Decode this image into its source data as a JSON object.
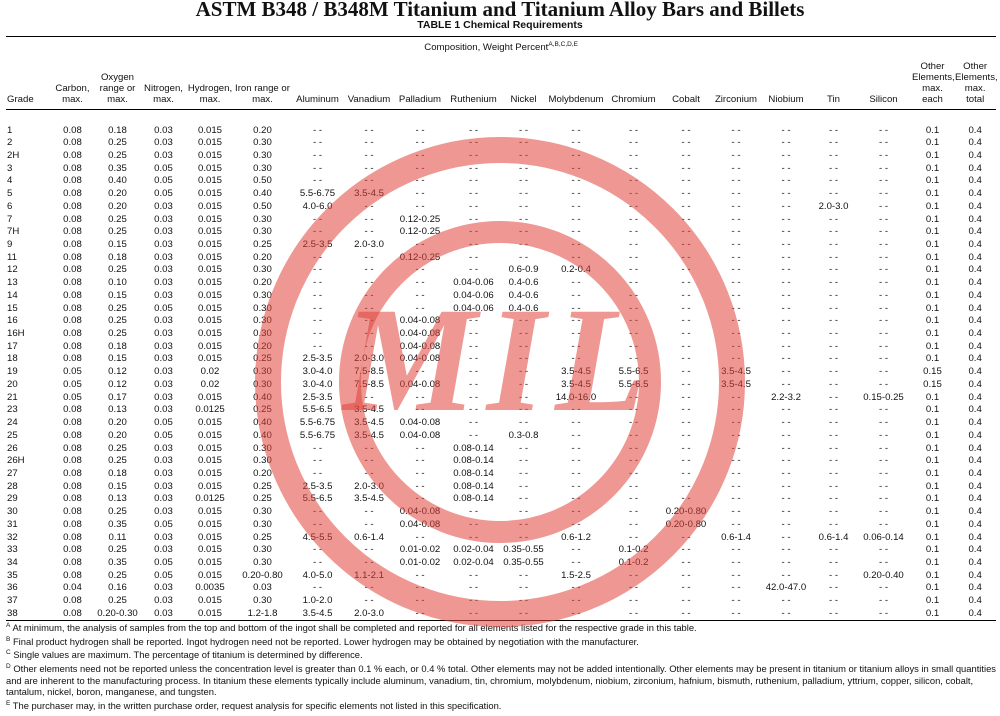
{
  "header": {
    "title": "ASTM B348 / B348M Titanium and Titanium Alloy Bars and Billets",
    "subtitle": "TABLE 1 Chemical Requirements"
  },
  "table": {
    "group_header": "Composition, Weight Percent",
    "group_header_sup": "A,B,C,D,E",
    "columns": [
      "Grade",
      "Carbon, max.",
      "Oxygen range or max.",
      "Nitrogen, max.",
      "Hydrogen, max.",
      "Iron range or max.",
      "Aluminum",
      "Vanadium",
      "Palladium",
      "Ruthenium",
      "Nickel",
      "Molybdenum",
      "Chromium",
      "Cobalt",
      "Zirconium",
      "Niobium",
      "Tin",
      "Silicon",
      "Other Elements, max. each",
      "Other Elements, max. total"
    ],
    "rows": [
      [
        "1",
        "0.08",
        "0.18",
        "0.03",
        "0.015",
        "0.20",
        "- -",
        "- -",
        "- -",
        "- -",
        "- -",
        "- -",
        "- -",
        "- -",
        "- -",
        "- -",
        "- -",
        "- -",
        "0.1",
        "0.4"
      ],
      [
        "2",
        "0.08",
        "0.25",
        "0.03",
        "0.015",
        "0.30",
        "- -",
        "- -",
        "- -",
        "- -",
        "- -",
        "- -",
        "- -",
        "- -",
        "- -",
        "- -",
        "- -",
        "- -",
        "0.1",
        "0.4"
      ],
      [
        "2H",
        "0.08",
        "0.25",
        "0.03",
        "0.015",
        "0.30",
        "- -",
        "- -",
        "- -",
        "- -",
        "- -",
        "- -",
        "- -",
        "- -",
        "- -",
        "- -",
        "- -",
        "- -",
        "0.1",
        "0.4"
      ],
      [
        "3",
        "0.08",
        "0.35",
        "0.05",
        "0.015",
        "0.30",
        "- -",
        "- -",
        "- -",
        "- -",
        "- -",
        "- -",
        "- -",
        "- -",
        "- -",
        "- -",
        "- -",
        "- -",
        "0.1",
        "0.4"
      ],
      [
        "4",
        "0.08",
        "0.40",
        "0.05",
        "0.015",
        "0.50",
        "- -",
        "- -",
        "- -",
        "- -",
        "- -",
        "- -",
        "- -",
        "- -",
        "- -",
        "- -",
        "- -",
        "- -",
        "0.1",
        "0.4"
      ],
      [
        "5",
        "0.08",
        "0.20",
        "0.05",
        "0.015",
        "0.40",
        "5.5-6.75",
        "3.5-4.5",
        "- -",
        "- -",
        "- -",
        "- -",
        "- -",
        "- -",
        "- -",
        "- -",
        "- -",
        "- -",
        "0.1",
        "0.4"
      ],
      [
        "6",
        "0.08",
        "0.20",
        "0.03",
        "0.015",
        "0.50",
        "4.0-6.0",
        "- -",
        "- -",
        "- -",
        "- -",
        "- -",
        "- -",
        "- -",
        "- -",
        "- -",
        "2.0-3.0",
        "- -",
        "0.1",
        "0.4"
      ],
      [
        "7",
        "0.08",
        "0.25",
        "0.03",
        "0.015",
        "0.30",
        "- -",
        "- -",
        "0.12-0.25",
        "- -",
        "- -",
        "- -",
        "- -",
        "- -",
        "- -",
        "- -",
        "- -",
        "- -",
        "0.1",
        "0.4"
      ],
      [
        "7H",
        "0.08",
        "0.25",
        "0.03",
        "0.015",
        "0.30",
        "- -",
        "- -",
        "0.12-0.25",
        "- -",
        "- -",
        "- -",
        "- -",
        "- -",
        "- -",
        "- -",
        "- -",
        "- -",
        "0.1",
        "0.4"
      ],
      [
        "9",
        "0.08",
        "0.15",
        "0.03",
        "0.015",
        "0.25",
        "2.5-3.5",
        "2.0-3.0",
        "- -",
        "- -",
        "- -",
        "- -",
        "- -",
        "- -",
        "- -",
        "- -",
        "- -",
        "- -",
        "0.1",
        "0.4"
      ],
      [
        "11",
        "0.08",
        "0.18",
        "0.03",
        "0.015",
        "0.20",
        "- -",
        "- -",
        "0.12-0.25",
        "- -",
        "- -",
        "- -",
        "- -",
        "- -",
        "- -",
        "- -",
        "- -",
        "- -",
        "0.1",
        "0.4"
      ],
      [
        "12",
        "0.08",
        "0.25",
        "0.03",
        "0.015",
        "0.30",
        "- -",
        "- -",
        "- -",
        "- -",
        "0.6-0.9",
        "0.2-0.4",
        "- -",
        "- -",
        "- -",
        "- -",
        "- -",
        "- -",
        "0.1",
        "0.4"
      ],
      [
        "13",
        "0.08",
        "0.10",
        "0.03",
        "0.015",
        "0.20",
        "- -",
        "- -",
        "- -",
        "0.04-0.06",
        "0.4-0.6",
        "- -",
        "- -",
        "- -",
        "- -",
        "- -",
        "- -",
        "- -",
        "0.1",
        "0.4"
      ],
      [
        "14",
        "0.08",
        "0.15",
        "0.03",
        "0.015",
        "0.30",
        "- -",
        "- -",
        "- -",
        "0.04-0.06",
        "0.4-0.6",
        "- -",
        "- -",
        "- -",
        "- -",
        "- -",
        "- -",
        "- -",
        "0.1",
        "0.4"
      ],
      [
        "15",
        "0.08",
        "0.25",
        "0.05",
        "0.015",
        "0.30",
        "- -",
        "- -",
        "- -",
        "0.04-0.06",
        "0.4-0.6",
        "- -",
        "- -",
        "- -",
        "- -",
        "- -",
        "- -",
        "- -",
        "0.1",
        "0.4"
      ],
      [
        "16",
        "0.08",
        "0.25",
        "0.03",
        "0.015",
        "0.30",
        "- -",
        "- -",
        "0.04-0.08",
        "- -",
        "- -",
        "- -",
        "- -",
        "- -",
        "- -",
        "- -",
        "- -",
        "- -",
        "0.1",
        "0.4"
      ],
      [
        "16H",
        "0.08",
        "0.25",
        "0.03",
        "0.015",
        "0.30",
        "- -",
        "- -",
        "0.04-0.08",
        "- -",
        "- -",
        "- -",
        "- -",
        "- -",
        "- -",
        "- -",
        "- -",
        "- -",
        "0.1",
        "0.4"
      ],
      [
        "17",
        "0.08",
        "0.18",
        "0.03",
        "0.015",
        "0.20",
        "- -",
        "- -",
        "0.04-0.08",
        "- -",
        "- -",
        "- -",
        "- -",
        "- -",
        "- -",
        "- -",
        "- -",
        "- -",
        "0.1",
        "0.4"
      ],
      [
        "18",
        "0.08",
        "0.15",
        "0.03",
        "0.015",
        "0.25",
        "2.5-3.5",
        "2.0-3.0",
        "0.04-0.08",
        "- -",
        "- -",
        "- -",
        "- -",
        "- -",
        "- -",
        "- -",
        "- -",
        "- -",
        "0.1",
        "0.4"
      ],
      [
        "19",
        "0.05",
        "0.12",
        "0.03",
        "0.02",
        "0.30",
        "3.0-4.0",
        "7.5-8.5",
        "- -",
        "- -",
        "- -",
        "3.5-4.5",
        "5.5-6.5",
        "- -",
        "3.5-4.5",
        "- -",
        "- -",
        "- -",
        "0.15",
        "0.4"
      ],
      [
        "20",
        "0.05",
        "0.12",
        "0.03",
        "0.02",
        "0.30",
        "3.0-4.0",
        "7.5-8.5",
        "0.04-0.08",
        "- -",
        "- -",
        "3.5-4.5",
        "5.5-6.5",
        "- -",
        "3.5-4.5",
        "- -",
        "- -",
        "- -",
        "0.15",
        "0.4"
      ],
      [
        "21",
        "0.05",
        "0.17",
        "0.03",
        "0.015",
        "0.40",
        "2.5-3.5",
        "- -",
        "- -",
        "- -",
        "- -",
        "14.0-16.0",
        "- -",
        "- -",
        "- -",
        "2.2-3.2",
        "- -",
        "0.15-0.25",
        "0.1",
        "0.4"
      ],
      [
        "23",
        "0.08",
        "0.13",
        "0.03",
        "0.0125",
        "0.25",
        "5.5-6.5",
        "3.5-4.5",
        "- -",
        "- -",
        "- -",
        "- -",
        "- -",
        "- -",
        "- -",
        "- -",
        "- -",
        "- -",
        "0.1",
        "0.4"
      ],
      [
        "24",
        "0.08",
        "0.20",
        "0.05",
        "0.015",
        "0.40",
        "5.5-6.75",
        "3.5-4.5",
        "0.04-0.08",
        "- -",
        "- -",
        "- -",
        "- -",
        "- -",
        "- -",
        "- -",
        "- -",
        "- -",
        "0.1",
        "0.4"
      ],
      [
        "25",
        "0.08",
        "0.20",
        "0.05",
        "0.015",
        "0.40",
        "5.5-6.75",
        "3.5-4.5",
        "0.04-0.08",
        "- -",
        "0.3-0.8",
        "- -",
        "- -",
        "- -",
        "- -",
        "- -",
        "- -",
        "- -",
        "0.1",
        "0.4"
      ],
      [
        "26",
        "0.08",
        "0.25",
        "0.03",
        "0.015",
        "0.30",
        "- -",
        "- -",
        "- -",
        "0.08-0.14",
        "- -",
        "- -",
        "- -",
        "- -",
        "- -",
        "- -",
        "- -",
        "- -",
        "0.1",
        "0.4"
      ],
      [
        "26H",
        "0.08",
        "0.25",
        "0.03",
        "0.015",
        "0.30",
        "- -",
        "- -",
        "- -",
        "0.08-0.14",
        "- -",
        "- -",
        "- -",
        "- -",
        "- -",
        "- -",
        "- -",
        "- -",
        "0.1",
        "0.4"
      ],
      [
        "27",
        "0.08",
        "0.18",
        "0.03",
        "0.015",
        "0.20",
        "- -",
        "- -",
        "- -",
        "0.08-0.14",
        "- -",
        "- -",
        "- -",
        "- -",
        "- -",
        "- -",
        "- -",
        "- -",
        "0.1",
        "0.4"
      ],
      [
        "28",
        "0.08",
        "0.15",
        "0.03",
        "0.015",
        "0.25",
        "2.5-3.5",
        "2.0-3.0",
        "- -",
        "0.08-0.14",
        "- -",
        "- -",
        "- -",
        "- -",
        "- -",
        "- -",
        "- -",
        "- -",
        "0.1",
        "0.4"
      ],
      [
        "29",
        "0.08",
        "0.13",
        "0.03",
        "0.0125",
        "0.25",
        "5.5-6.5",
        "3.5-4.5",
        "- -",
        "0.08-0.14",
        "- -",
        "- -",
        "- -",
        "- -",
        "- -",
        "- -",
        "- -",
        "- -",
        "0.1",
        "0.4"
      ],
      [
        "30",
        "0.08",
        "0.25",
        "0.03",
        "0.015",
        "0.30",
        "- -",
        "- -",
        "0.04-0.08",
        "- -",
        "- -",
        "- -",
        "- -",
        "0.20-0.80",
        "- -",
        "- -",
        "- -",
        "- -",
        "0.1",
        "0.4"
      ],
      [
        "31",
        "0.08",
        "0.35",
        "0.05",
        "0.015",
        "0.30",
        "- -",
        "- -",
        "0.04-0.08",
        "- -",
        "- -",
        "- -",
        "- -",
        "0.20-0.80",
        "- -",
        "- -",
        "- -",
        "- -",
        "0.1",
        "0.4"
      ],
      [
        "32",
        "0.08",
        "0.11",
        "0.03",
        "0.015",
        "0.25",
        "4.5-5.5",
        "0.6-1.4",
        "- -",
        "- -",
        "- -",
        "0.6-1.2",
        "- -",
        "- -",
        "0.6-1.4",
        "- -",
        "0.6-1.4",
        "0.06-0.14",
        "0.1",
        "0.4"
      ],
      [
        "33",
        "0.08",
        "0.25",
        "0.03",
        "0.015",
        "0.30",
        "- -",
        "- -",
        "0.01-0.02",
        "0.02-0.04",
        "0.35-0.55",
        "- -",
        "0.1-0.2",
        "- -",
        "- -",
        "- -",
        "- -",
        "- -",
        "0.1",
        "0.4"
      ],
      [
        "34",
        "0.08",
        "0.35",
        "0.05",
        "0.015",
        "0.30",
        "- -",
        "- -",
        "0.01-0.02",
        "0.02-0.04",
        "0.35-0.55",
        "- -",
        "0.1-0.2",
        "- -",
        "- -",
        "- -",
        "- -",
        "- -",
        "0.1",
        "0.4"
      ],
      [
        "35",
        "0.08",
        "0.25",
        "0.05",
        "0.015",
        "0.20-0.80",
        "4.0-5.0",
        "1.1-2.1",
        "- -",
        "- -",
        "- -",
        "1.5-2.5",
        "- -",
        "- -",
        "- -",
        "- -",
        "- -",
        "0.20-0.40",
        "0.1",
        "0.4"
      ],
      [
        "36",
        "0.04",
        "0.16",
        "0.03",
        "0.0035",
        "0.03",
        "- -",
        "- -",
        "- -",
        "- -",
        "- -",
        "- -",
        "- -",
        "- -",
        "- -",
        "42.0-47.0",
        "- -",
        "- -",
        "0.1",
        "0.4"
      ],
      [
        "37",
        "0.08",
        "0.25",
        "0.03",
        "0.015",
        "0.30",
        "1.0-2.0",
        "- -",
        "- -",
        "- -",
        "- -",
        "- -",
        "- -",
        "- -",
        "- -",
        "- -",
        "- -",
        "- -",
        "0.1",
        "0.4"
      ],
      [
        "38",
        "0.08",
        "0.20-0.30",
        "0.03",
        "0.015",
        "1.2-1.8",
        "3.5-4.5",
        "2.0-3.0",
        "- -",
        "- -",
        "- -",
        "- -",
        "- -",
        "- -",
        "- -",
        "- -",
        "- -",
        "- -",
        "0.1",
        "0.4"
      ]
    ]
  },
  "footnotes": [
    {
      "mark": "A",
      "text": "At minimum, the analysis of samples from the top and bottom of the ingot shall be completed and reported for all elements listed for the respective grade in this table."
    },
    {
      "mark": "B",
      "text": "Final product hydrogen shall be reported. Ingot hydrogen need not be reported. Lower hydrogen may be obtained by negotiation with the manufacturer."
    },
    {
      "mark": "C",
      "text": "Single values are maximum. The percentage of titanium is determined by difference."
    },
    {
      "mark": "D",
      "text": "Other elements need not be reported unless the concentration level is greater than 0.1 % each, or 0.4 % total. Other elements may not be added intentionally. Other elements may be present in titanium or titanium alloys in small quantities and are inherent to the manufacturing process. In titanium these elements typically include aluminum, vanadium, tin, chromium, molybdenum, niobium, zirconium, hafnium, bismuth, ruthenium, palladium, yttrium, copper, silicon, cobalt, tantalum, nickel, boron, manganese, and tungsten."
    },
    {
      "mark": "E",
      "text": "The purchaser may, in the written purchase order, request analysis for specific elements not listed in this specification."
    }
  ],
  "watermark": "MIL"
}
